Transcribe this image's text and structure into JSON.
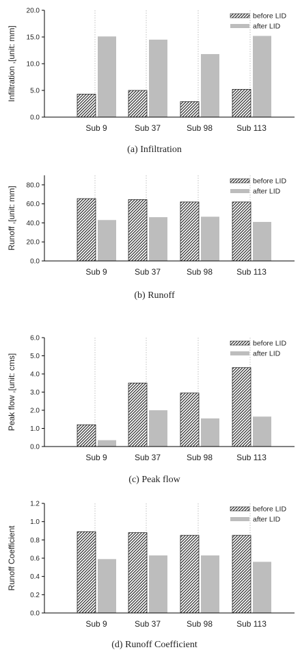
{
  "colors": {
    "before": "#2a2a2a",
    "after": "#bdbdbd",
    "axis": "#000000",
    "divider": "#b0b0b0"
  },
  "legend_placement": "top-right",
  "chart_data": [
    {
      "type": "bar",
      "caption": "(a) Infiltration",
      "ylabel": "Infiltration ,[unit: mm]",
      "categories": [
        "Sub 9",
        "Sub 37",
        "Sub 98",
        "Sub 113"
      ],
      "ylim": [
        0,
        20
      ],
      "yticks": [
        0,
        5,
        10,
        15,
        20
      ],
      "yticklabels": [
        "0.0",
        "5.0",
        "10.0",
        "15.0",
        "20.0"
      ],
      "series": [
        {
          "name": "before LID",
          "values": [
            4.3,
            5.0,
            2.9,
            5.2
          ]
        },
        {
          "name": "after LID",
          "values": [
            15.1,
            14.5,
            11.8,
            15.2
          ]
        }
      ]
    },
    {
      "type": "bar",
      "caption": "(b) Runoff",
      "ylabel": "Runoff ,[unit: mm]",
      "categories": [
        "Sub 9",
        "Sub 37",
        "Sub 98",
        "Sub 113"
      ],
      "ylim": [
        0,
        90
      ],
      "yticks": [
        0,
        20,
        40,
        60,
        80
      ],
      "yticklabels": [
        "0.0",
        "20.0",
        "40.0",
        "60.0",
        "80.0"
      ],
      "series": [
        {
          "name": "before LID",
          "values": [
            65.5,
            64.5,
            62.0,
            62.0
          ]
        },
        {
          "name": "after LID",
          "values": [
            43.0,
            46.0,
            46.5,
            41.0
          ]
        }
      ]
    },
    {
      "type": "bar",
      "caption": "(c) Peak flow",
      "ylabel": "Peak flow ,[unit: cms]",
      "categories": [
        "Sub 9",
        "Sub 37",
        "Sub 98",
        "Sub 113"
      ],
      "ylim": [
        0,
        6
      ],
      "yticks": [
        0,
        1,
        2,
        3,
        4,
        5,
        6
      ],
      "yticklabels": [
        "0.0",
        "1.0",
        "2.0",
        "3.0",
        "4.0",
        "5.0",
        "6.0"
      ],
      "series": [
        {
          "name": "before LID",
          "values": [
            1.2,
            3.5,
            2.95,
            4.35
          ]
        },
        {
          "name": "after LID",
          "values": [
            0.35,
            2.0,
            1.55,
            1.65
          ]
        }
      ]
    },
    {
      "type": "bar",
      "caption": "(d) Runoff Coefficient",
      "ylabel": "Runoff Coefficient",
      "categories": [
        "Sub 9",
        "Sub 37",
        "Sub 98",
        "Sub 113"
      ],
      "ylim": [
        0,
        1.2
      ],
      "yticks": [
        0,
        0.2,
        0.4,
        0.6,
        0.8,
        1.0,
        1.2
      ],
      "yticklabels": [
        "0.0",
        "0.2",
        "0.4",
        "0.6",
        "0.8",
        "1.0",
        "1.2"
      ],
      "series": [
        {
          "name": "before LID",
          "values": [
            0.89,
            0.88,
            0.85,
            0.85
          ]
        },
        {
          "name": "after LID",
          "values": [
            0.59,
            0.63,
            0.63,
            0.56
          ]
        }
      ]
    }
  ]
}
